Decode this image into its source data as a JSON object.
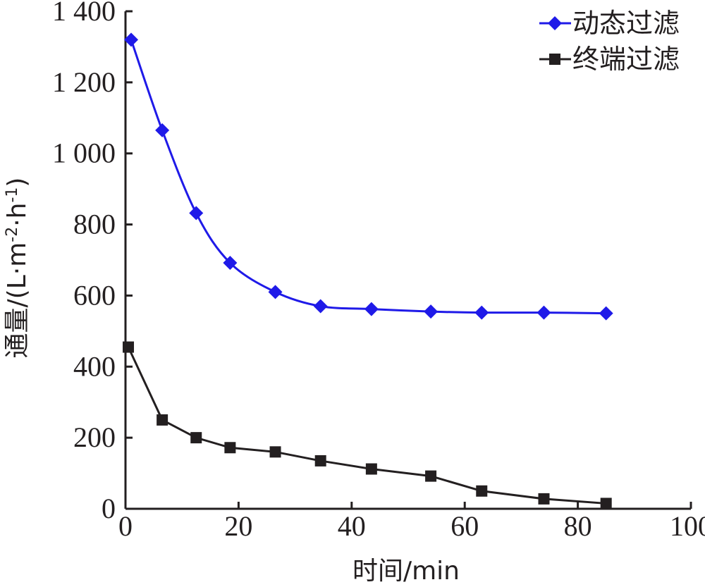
{
  "chart_data": {
    "type": "line",
    "xlabel": "时间/min",
    "ylabel_main": "通量/(L·m",
    "ylabel_sup1": "-2",
    "ylabel_mid": "·h",
    "ylabel_sup2": "-1",
    "ylabel_end": ")",
    "xlim": [
      0,
      100
    ],
    "ylim": [
      0,
      1400
    ],
    "x_ticks": [
      0,
      20,
      40,
      60,
      80,
      100
    ],
    "y_ticks": [
      0,
      200,
      400,
      600,
      800,
      1000,
      1200,
      1400
    ],
    "x_tick_labels": [
      "0",
      "20",
      "40",
      "60",
      "80",
      "100"
    ],
    "y_tick_labels": [
      "0",
      "200",
      "400",
      "600",
      "800",
      "1 000",
      "1 200",
      "1 400"
    ],
    "grid": false,
    "legend_position": "top-right",
    "series": [
      {
        "name": "动态过滤",
        "color": "#1f1ae8",
        "marker": "diamond",
        "x": [
          1,
          6.5,
          12.5,
          18.5,
          26.5,
          34.5,
          43.5,
          54,
          63,
          74,
          85
        ],
        "y": [
          1320,
          1065,
          832,
          692,
          610,
          570,
          562,
          555,
          552,
          552,
          550
        ]
      },
      {
        "name": "终端过滤",
        "color": "#231f20",
        "marker": "square",
        "x": [
          0.5,
          6.5,
          12.5,
          18.5,
          26.5,
          34.5,
          43.5,
          54,
          63,
          74,
          85
        ],
        "y": [
          455,
          250,
          200,
          172,
          160,
          135,
          112,
          92,
          50,
          28,
          15
        ]
      }
    ]
  }
}
